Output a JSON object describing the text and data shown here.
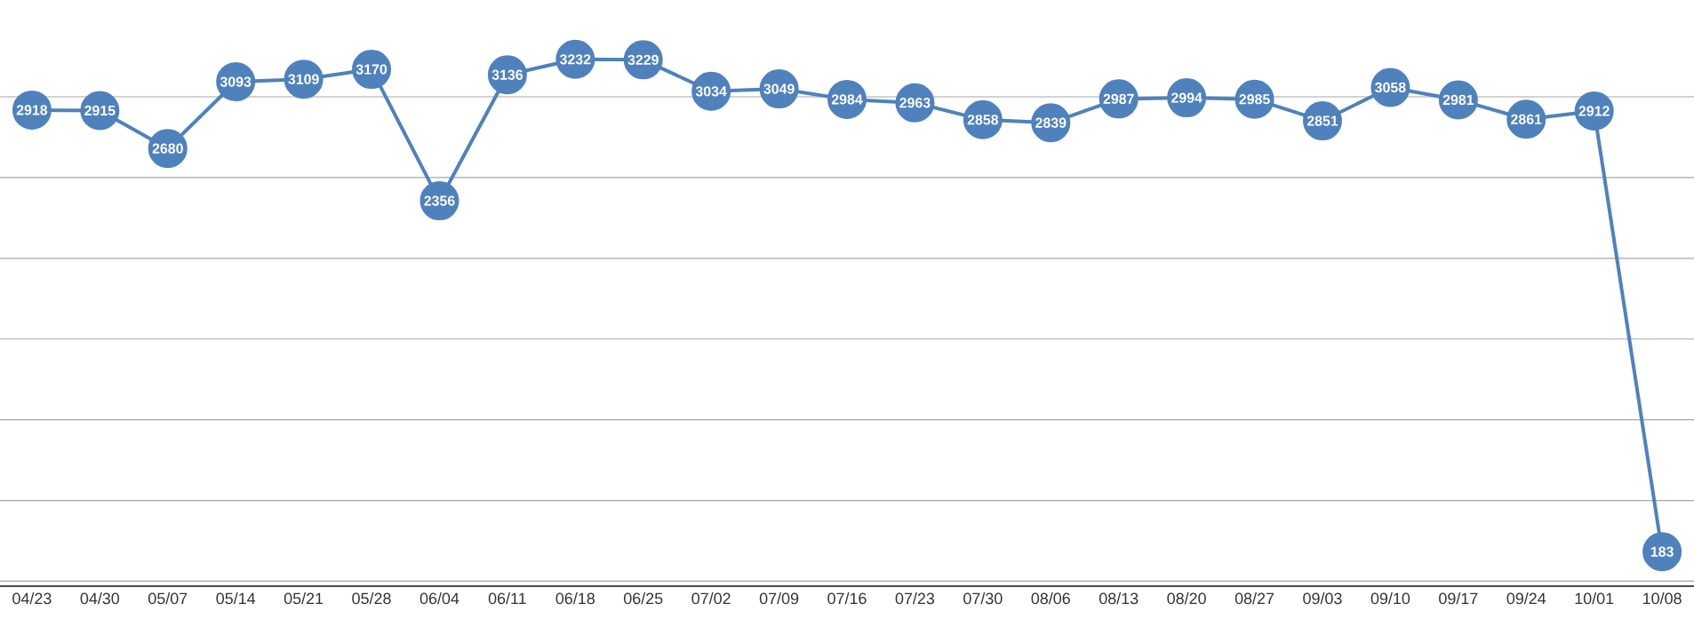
{
  "chart_data": {
    "type": "line",
    "categories": [
      "04/23",
      "04/30",
      "05/07",
      "05/14",
      "05/21",
      "05/28",
      "06/04",
      "06/11",
      "06/18",
      "06/25",
      "07/02",
      "07/09",
      "07/16",
      "07/23",
      "07/30",
      "08/06",
      "08/13",
      "08/20",
      "08/27",
      "09/03",
      "09/10",
      "09/17",
      "09/24",
      "10/01",
      "10/08"
    ],
    "values": [
      2918,
      2915,
      2680,
      3093,
      3109,
      3170,
      2356,
      3136,
      3232,
      3229,
      3034,
      3049,
      2984,
      2963,
      2858,
      2839,
      2987,
      2994,
      2985,
      2851,
      3058,
      2981,
      2861,
      2912,
      183
    ],
    "color": "#4f81bd",
    "tick_labels": "x",
    "grid": "y",
    "marker": "circle",
    "line_style": "solid",
    "data_labels": true
  }
}
